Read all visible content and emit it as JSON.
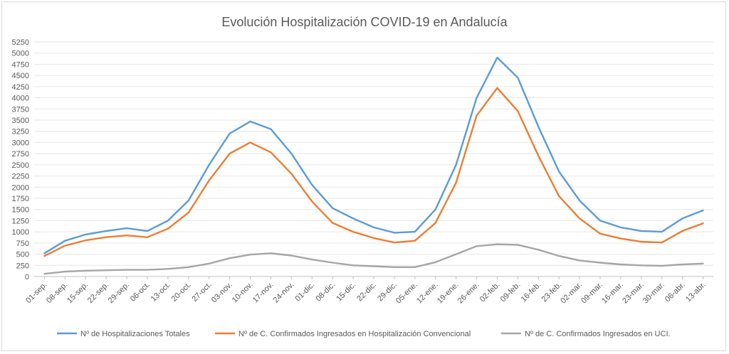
{
  "chart_data": {
    "type": "line",
    "title": "Evolución Hospitalización COVID-19 en Andalucía",
    "xlabel": "",
    "ylabel": "",
    "ylim": [
      0,
      5250
    ],
    "yticks": [
      0,
      250,
      500,
      750,
      1000,
      1250,
      1500,
      1750,
      2000,
      2250,
      2500,
      2750,
      3000,
      3250,
      3500,
      3750,
      4000,
      4250,
      4500,
      4750,
      5000,
      5250
    ],
    "grid": "horizontal",
    "legend": "bottom",
    "x": [
      "01-sep.",
      "08-sep.",
      "15-sep.",
      "22-sep.",
      "29-sep.",
      "06-oct.",
      "13-oct.",
      "20-oct.",
      "27-oct.",
      "03-nov.",
      "10-nov.",
      "17-nov.",
      "24-nov.",
      "01-dic.",
      "08-dic.",
      "15-dic.",
      "22-dic.",
      "29-dic.",
      "05-ene.",
      "12-ene.",
      "19-ene.",
      "26-ene.",
      "02-feb.",
      "09-feb.",
      "16-feb.",
      "23-feb.",
      "02-mar.",
      "09-mar.",
      "16-mar.",
      "23-mar.",
      "30-mar.",
      "06-abr.",
      "13-abr."
    ],
    "series": [
      {
        "name": "Nº de Hospitalizaciones Totales",
        "color": "#5b9bd5",
        "values": [
          520,
          800,
          940,
          1020,
          1080,
          1020,
          1250,
          1700,
          2500,
          3200,
          3470,
          3300,
          2750,
          2050,
          1530,
          1300,
          1100,
          980,
          1000,
          1500,
          2500,
          4000,
          4900,
          4450,
          3350,
          2350,
          1700,
          1250,
          1100,
          1020,
          1000,
          1300,
          1480
        ]
      },
      {
        "name": "Nº de C. Confirmados Ingresados en Hospitalización Convencional",
        "color": "#ed7d31",
        "values": [
          460,
          690,
          810,
          880,
          920,
          880,
          1070,
          1430,
          2150,
          2750,
          3000,
          2780,
          2300,
          1680,
          1200,
          1000,
          860,
          760,
          800,
          1200,
          2100,
          3600,
          4220,
          3700,
          2700,
          1800,
          1300,
          960,
          850,
          780,
          760,
          1020,
          1190
        ]
      },
      {
        "name": "Nº de C. Confirmados Ingresados en UCI.",
        "color": "#a5a5a5",
        "values": [
          60,
          110,
          130,
          140,
          150,
          150,
          170,
          210,
          290,
          410,
          490,
          520,
          470,
          380,
          310,
          250,
          230,
          210,
          210,
          320,
          500,
          680,
          720,
          710,
          600,
          460,
          360,
          310,
          270,
          250,
          240,
          270,
          290
        ]
      }
    ]
  }
}
